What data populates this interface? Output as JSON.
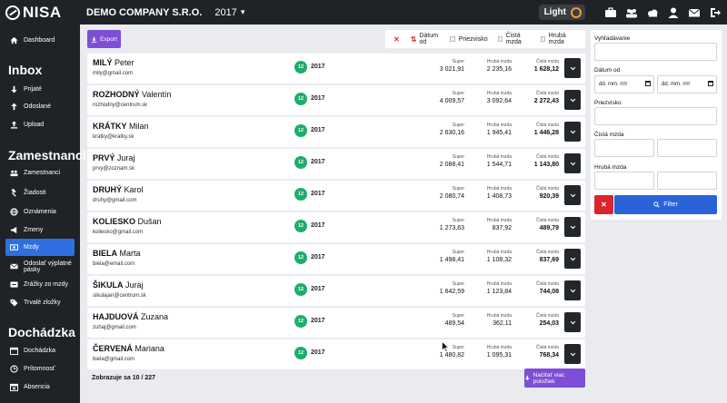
{
  "brand": {
    "name": "NISA"
  },
  "header": {
    "company": "DEMO COMPANY S.R.O.",
    "year": "2017",
    "theme": "Light"
  },
  "header_icons": [
    "briefcase-icon",
    "users-icon",
    "cloud-icon",
    "user-icon",
    "mail-icon",
    "logout-icon"
  ],
  "sidebar": {
    "dashboard": "Dashboard",
    "inbox_title": "Inbox",
    "inbox": [
      "Prijaté",
      "Odoslané",
      "Upload"
    ],
    "zam_title": "Zamestnanci",
    "zam": [
      "Zamestnanci",
      "Žiadosti",
      "Oznámenia",
      "Zmeny",
      "Mzdy",
      "Odoslať výplatné pásky",
      "Zrážky zo mzdy",
      "Trvalé zložky"
    ],
    "doch_title": "Dochádzka",
    "doch": [
      "Dochádzka",
      "Prítomnosť",
      "Absencia"
    ]
  },
  "toolbar": {
    "export": "Export",
    "sort": [
      "Dátum od",
      "Priezvisko",
      "Čistá mzda",
      "Hrubá mzda"
    ]
  },
  "columns": {
    "super": "Super",
    "gross": "Hrubá mzda",
    "net": "Čistá mzda"
  },
  "employees": [
    {
      "last": "MILÝ",
      "first": "Peter",
      "email": "mily@gmail.com",
      "month": "12",
      "year": "2017",
      "super": "3 021,91",
      "gross": "2 235,16",
      "net": "1 628,12"
    },
    {
      "last": "ROZHODNÝ",
      "first": "Valentín",
      "email": "rozhodny@centrum.sk",
      "month": "12",
      "year": "2017",
      "super": "4 009,57",
      "gross": "3 092,64",
      "net": "2 272,43"
    },
    {
      "last": "KRÁTKY",
      "first": "Milan",
      "email": "kratky@kratky.sk",
      "month": "12",
      "year": "2017",
      "super": "2 630,16",
      "gross": "1 945,41",
      "net": "1 446,28"
    },
    {
      "last": "PRVÝ",
      "first": "Juraj",
      "email": "prvy@zoznam.sk",
      "month": "12",
      "year": "2017",
      "super": "2 088,41",
      "gross": "1 544,71",
      "net": "1 143,80"
    },
    {
      "last": "DRUHÝ",
      "first": "Karol",
      "email": "druhy@gmail.com",
      "month": "12",
      "year": "2017",
      "super": "2 080,74",
      "gross": "1 408,73",
      "net": "920,39"
    },
    {
      "last": "KOLIESKO",
      "first": "Dušan",
      "email": "koliesko@gmail.com",
      "month": "12",
      "year": "2017",
      "super": "1 273,63",
      "gross": "837,92",
      "net": "489,79"
    },
    {
      "last": "BIELA",
      "first": "Marta",
      "email": "biela@email.com",
      "month": "12",
      "year": "2017",
      "super": "1 498,41",
      "gross": "1 108,32",
      "net": "837,69"
    },
    {
      "last": "ŠIKULA",
      "first": "Juraj",
      "email": "sikulajan@centrum.sk",
      "month": "12",
      "year": "2017",
      "super": "1 642,59",
      "gross": "1 123,84",
      "net": "744,08"
    },
    {
      "last": "HAJDUOVÁ",
      "first": "Zuzana",
      "email": "zuhaj@gmail.com",
      "month": "12",
      "year": "2017",
      "super": "489,54",
      "gross": "362,11",
      "net": "254,03"
    },
    {
      "last": "ČERVENÁ",
      "first": "Mariana",
      "email": "biela@gmail.com",
      "month": "12",
      "year": "2017",
      "super": "1 480,82",
      "gross": "1 095,31",
      "net": "768,34"
    }
  ],
  "footer": {
    "count": "Zobrazuje sa 10 / 227",
    "load_more": "Načítať viac položiek"
  },
  "filter": {
    "search_label": "Vyhľadávanie",
    "date_label": "Dátum od",
    "date_placeholder": "dd. mm. rrrr",
    "surname_label": "Priezvisko",
    "net_label": "Čistá mzda",
    "gross_label": "Hrubá mzda",
    "submit": "Filter"
  },
  "colors": {
    "accent": "#7e4fd6",
    "primary": "#2a63d8",
    "danger": "#d9252d",
    "success": "#1fae6a",
    "dark": "#1f2227"
  }
}
